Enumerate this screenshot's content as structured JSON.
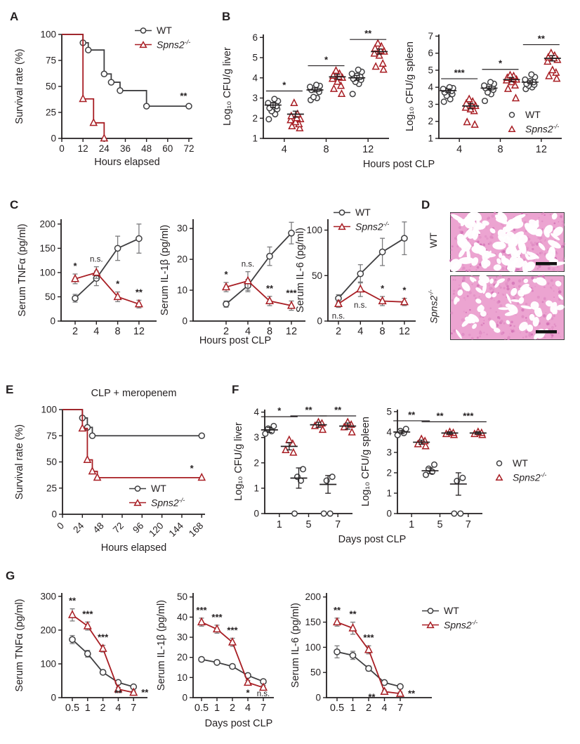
{
  "figure": {
    "panel_letters": {
      "A": "A",
      "B": "B",
      "C": "C",
      "D": "D",
      "E": "E",
      "F": "F",
      "G": "G"
    },
    "legend": {
      "wt": "WT",
      "ko_base": "Spns2",
      "ko_sup": "-/-"
    },
    "shared_labels": {
      "b_xlabel": "Hours post CLP",
      "c_xlabel": "Hours post CLP",
      "f_xlabel": "Days post CLP",
      "g_xlabel": "Days post CLP"
    },
    "histology": {
      "wt_label": "WT",
      "ko_label_base": "Spns2",
      "ko_label_sup": "-/-"
    },
    "colors": {
      "wt": "#3f3f41",
      "ko": "#a81e24",
      "axis": "#231f20",
      "err": "#7b7b7d",
      "mean": "#231f20",
      "hist_pink": "#eca4d1"
    }
  },
  "chart_data": [
    {
      "id": "A",
      "type": "survival",
      "ylabel": "Survival rate (%)",
      "xlabel": "Hours elapsed",
      "xlim": [
        0,
        74
      ],
      "xticks": [
        0,
        12,
        24,
        36,
        48,
        60,
        72
      ],
      "ylim": [
        0,
        100
      ],
      "yticks": [
        0,
        25,
        50,
        75,
        100
      ],
      "series": [
        {
          "name": "WT",
          "color": "wt",
          "marker": "circle",
          "steps": [
            [
              0,
              100
            ],
            [
              12,
              92
            ],
            [
              15,
              85
            ],
            [
              24,
              62
            ],
            [
              28,
              54
            ],
            [
              33,
              46
            ],
            [
              48,
              31
            ],
            [
              72,
              31
            ]
          ]
        },
        {
          "name": "Spns2-/-",
          "color": "ko",
          "marker": "triangle",
          "steps": [
            [
              0,
              100
            ],
            [
              12,
              38
            ],
            [
              18,
              15
            ],
            [
              24,
              0
            ]
          ]
        }
      ],
      "annotations": [
        {
          "text": "**",
          "x": 69,
          "y": 38
        }
      ]
    },
    {
      "id": "B1",
      "type": "scatter",
      "ylabel": "Log₁₀ CFU/g liver",
      "ylim": [
        1,
        6.15
      ],
      "yticks": [
        1,
        2,
        3,
        4,
        5,
        6
      ],
      "categories": [
        "4",
        "8",
        "12"
      ],
      "groups": [
        {
          "sig": "*",
          "sig_y": 3.35,
          "wt": [
            1.95,
            2.2,
            2.35,
            2.45,
            2.5,
            2.6,
            2.65,
            2.75,
            2.85,
            2.95
          ],
          "wt_mean": 2.65,
          "wt_err": 0.12,
          "ko": [
            1.5,
            1.6,
            1.7,
            1.8,
            1.9,
            1.95,
            2.0,
            2.1,
            2.2,
            2.75
          ],
          "ko_mean": 2.2,
          "ko_err": 0.15
        },
        {
          "sig": "*",
          "sig_y": 4.6,
          "wt": [
            2.9,
            3.0,
            3.05,
            3.3,
            3.4,
            3.45,
            3.5,
            3.55,
            3.6,
            3.65
          ],
          "wt_mean": 3.4,
          "wt_err": 0.1,
          "ko": [
            3.2,
            3.45,
            3.6,
            3.8,
            3.95,
            4.0,
            4.05,
            4.1,
            4.2,
            4.35
          ],
          "ko_mean": 4.05,
          "ko_err": 0.12
        },
        {
          "sig": "**",
          "sig_y": 5.9,
          "wt": [
            3.2,
            3.7,
            3.8,
            3.9,
            3.95,
            4.05,
            4.1,
            4.2,
            4.3,
            4.4
          ],
          "wt_mean": 4.0,
          "wt_err": 0.12,
          "ko": [
            4.4,
            4.55,
            4.7,
            5.1,
            5.2,
            5.3,
            5.35,
            5.45,
            5.55,
            5.7
          ],
          "ko_mean": 5.3,
          "ko_err": 0.13
        }
      ]
    },
    {
      "id": "B2",
      "type": "scatter",
      "ylabel": "Log₁₀ CFU/g spleen",
      "ylim": [
        1,
        7.1
      ],
      "yticks": [
        1,
        2,
        3,
        4,
        5,
        6,
        7
      ],
      "categories": [
        "4",
        "8",
        "12"
      ],
      "groups": [
        {
          "sig": "***",
          "sig_y": 4.5,
          "wt": [
            3.15,
            3.3,
            3.5,
            3.6,
            3.7,
            3.78,
            3.85,
            3.9,
            3.95,
            4.0
          ],
          "wt_mean": 3.8,
          "wt_err": 0.1,
          "ko": [
            1.8,
            1.95,
            2.6,
            2.7,
            2.8,
            2.9,
            2.95,
            3.05,
            3.15,
            3.3
          ],
          "ko_mean": 2.9,
          "ko_err": 0.16
        },
        {
          "sig": "*",
          "sig_y": 5.05,
          "wt": [
            3.2,
            3.6,
            3.7,
            3.85,
            3.95,
            4.0,
            4.05,
            4.1,
            4.2,
            4.3
          ],
          "wt_mean": 3.95,
          "wt_err": 0.11,
          "ko": [
            3.35,
            3.9,
            4.1,
            4.3,
            4.4,
            4.45,
            4.5,
            4.55,
            4.65,
            4.7
          ],
          "ko_mean": 4.45,
          "ko_err": 0.13
        },
        {
          "sig": "**",
          "sig_y": 6.5,
          "wt": [
            3.9,
            4.0,
            4.1,
            4.15,
            4.2,
            4.3,
            4.35,
            4.45,
            4.6,
            4.75
          ],
          "wt_mean": 4.3,
          "wt_err": 0.09,
          "ko": [
            4.5,
            4.65,
            4.85,
            5.0,
            5.5,
            5.6,
            5.7,
            5.75,
            5.85,
            6.0
          ],
          "ko_mean": 5.7,
          "ko_err": 0.16
        }
      ]
    },
    {
      "id": "C1",
      "type": "line",
      "ylabel": "Serum TNFα (pg/ml)",
      "ylim": [
        0,
        210
      ],
      "yticks": [
        0,
        50,
        100,
        150,
        200
      ],
      "categories": [
        "2",
        "4",
        "8",
        "12"
      ],
      "series": [
        {
          "name": "WT",
          "color": "wt",
          "marker": "circle",
          "values": [
            47,
            88,
            150,
            170
          ],
          "errors": [
            8,
            15,
            25,
            30
          ]
        },
        {
          "name": "Spns2-/-",
          "color": "ko",
          "marker": "triangle",
          "values": [
            87,
            100,
            50,
            35
          ],
          "errors": [
            10,
            12,
            10,
            8
          ]
        }
      ],
      "annotations": [
        {
          "ci": 0,
          "text": "*",
          "pos": "above"
        },
        {
          "ci": 1,
          "text": "n.s.",
          "pos": "above"
        },
        {
          "ci": 2,
          "text": "*",
          "pos": "above"
        },
        {
          "ci": 3,
          "text": "**",
          "pos": "above"
        }
      ]
    },
    {
      "id": "C2",
      "type": "line",
      "ylabel": "Serum IL-1β (pg/ml)",
      "ylim": [
        0,
        33
      ],
      "yticks": [
        0,
        10,
        20,
        30
      ],
      "categories": [
        "2",
        "4",
        "8",
        "12"
      ],
      "series": [
        {
          "name": "WT",
          "color": "wt",
          "marker": "circle",
          "values": [
            5.5,
            11.5,
            21,
            28.5
          ],
          "errors": [
            1,
            2,
            3,
            3.5
          ]
        },
        {
          "name": "Spns2-/-",
          "color": "ko",
          "marker": "triangle",
          "values": [
            11,
            13,
            6.5,
            5
          ],
          "errors": [
            1.5,
            3,
            1.5,
            1.5
          ]
        }
      ],
      "annotations": [
        {
          "ci": 0,
          "text": "*",
          "pos": "above"
        },
        {
          "ci": 1,
          "text": "n.s.",
          "pos": "above"
        },
        {
          "ci": 2,
          "text": "**",
          "pos": "above"
        },
        {
          "ci": 3,
          "text": "***",
          "pos": "above"
        }
      ]
    },
    {
      "id": "C3",
      "type": "line",
      "ylabel": "Serum IL-6 (pg/ml)",
      "ylim": [
        0,
        112
      ],
      "yticks": [
        0,
        50,
        100
      ],
      "categories": [
        "2",
        "4",
        "8",
        "12"
      ],
      "series": [
        {
          "name": "WT",
          "color": "wt",
          "marker": "circle",
          "values": [
            25,
            52,
            76,
            91
          ],
          "errors": [
            4,
            10,
            15,
            18
          ]
        },
        {
          "name": "Spns2-/-",
          "color": "ko",
          "marker": "triangle",
          "values": [
            19,
            35,
            22,
            21
          ],
          "errors": [
            4,
            8,
            5,
            4
          ]
        }
      ],
      "annotations": [
        {
          "ci": 0,
          "text": "n.s.",
          "pos": "below"
        },
        {
          "ci": 1,
          "text": "n.s.",
          "pos": "below"
        },
        {
          "ci": 2,
          "text": "*",
          "pos": "above"
        },
        {
          "ci": 3,
          "text": "*",
          "pos": "above"
        }
      ]
    },
    {
      "id": "E",
      "type": "survival",
      "title": "CLP + meropenem",
      "ylabel": "Survival rate (%)",
      "xlabel": "Hours elapsed",
      "xlim": [
        0,
        172
      ],
      "xticks": [
        0,
        24,
        48,
        72,
        96,
        120,
        144,
        168
      ],
      "rotate_xticks": true,
      "ylim": [
        0,
        100
      ],
      "yticks": [
        0,
        25,
        50,
        75,
        100
      ],
      "series": [
        {
          "name": "WT",
          "color": "wt",
          "marker": "circle",
          "steps": [
            [
              0,
              100
            ],
            [
              24,
              92
            ],
            [
              30,
              83
            ],
            [
              36,
              75
            ],
            [
              168,
              75
            ]
          ]
        },
        {
          "name": "Spns2-/-",
          "color": "ko",
          "marker": "triangle",
          "steps": [
            [
              0,
              100
            ],
            [
              24,
              82
            ],
            [
              30,
              52
            ],
            [
              36,
              41
            ],
            [
              42,
              35
            ],
            [
              168,
              35
            ]
          ]
        }
      ],
      "annotations": [
        {
          "text": "*",
          "x": 156,
          "y": 41
        }
      ]
    },
    {
      "id": "F1",
      "type": "scatter",
      "ylabel": "Log₁₀ CFU/g liver",
      "ylim": [
        0,
        4.1
      ],
      "yticks": [
        0,
        1,
        2,
        3,
        4
      ],
      "categories": [
        "1",
        "5",
        "7"
      ],
      "groups": [
        {
          "sig": "*",
          "sig_y": 3.82,
          "wt": [
            3.15,
            3.25,
            3.35,
            3.45
          ],
          "wt_mean": 3.3,
          "wt_err": 0.1,
          "ko": [
            2.4,
            2.5,
            2.75,
            2.9
          ],
          "ko_mean": 2.65,
          "ko_err": 0.14
        },
        {
          "sig": "**",
          "sig_y": 3.85,
          "wt": [
            0,
            1.3,
            1.45,
            1.75
          ],
          "wt_mean": 1.4,
          "wt_err": 0.4,
          "ko": [
            3.3,
            3.45,
            3.55,
            3.6
          ],
          "ko_mean": 3.5,
          "ko_err": 0.1
        },
        {
          "sig": "**",
          "sig_y": 3.85,
          "wt": [
            0,
            0,
            1.3,
            1.45
          ],
          "wt_mean": 1.15,
          "wt_err": 0.35,
          "ko": [
            3.2,
            3.4,
            3.5,
            3.6
          ],
          "ko_mean": 3.45,
          "ko_err": 0.12
        }
      ]
    },
    {
      "id": "F2",
      "type": "scatter",
      "ylabel": "Log₁₀ CFU/g spleen",
      "ylim": [
        0,
        5.1
      ],
      "yticks": [
        0,
        1,
        2,
        3,
        4,
        5
      ],
      "categories": [
        "1",
        "5",
        "7"
      ],
      "groups": [
        {
          "sig": "**",
          "sig_y": 4.55,
          "wt": [
            3.85,
            3.95,
            4.05,
            4.15
          ],
          "wt_mean": 4.0,
          "wt_err": 0.08,
          "ko": [
            3.3,
            3.4,
            3.55,
            3.65
          ],
          "ko_mean": 3.5,
          "ko_err": 0.1
        },
        {
          "sig": "**",
          "sig_y": 4.5,
          "wt": [
            1.9,
            2.05,
            2.2,
            2.4
          ],
          "wt_mean": 2.1,
          "wt_err": 0.14,
          "ko": [
            3.85,
            3.9,
            3.95,
            4.0
          ],
          "ko_mean": 3.95,
          "ko_err": 0.06
        },
        {
          "sig": "***",
          "sig_y": 4.5,
          "wt": [
            0,
            0,
            1.6,
            1.75
          ],
          "wt_mean": 1.45,
          "wt_err": 0.55,
          "ko": [
            3.85,
            3.9,
            3.95,
            4.0
          ],
          "ko_mean": 3.95,
          "ko_err": 0.06
        }
      ]
    },
    {
      "id": "G1",
      "type": "line",
      "ylabel": "Serum TNFα (pg/ml)",
      "ylim": [
        0,
        310
      ],
      "yticks": [
        0,
        100,
        200,
        300
      ],
      "categories": [
        "0.5",
        "1",
        "2",
        "4",
        "7"
      ],
      "series": [
        {
          "name": "WT",
          "color": "wt",
          "marker": "circle",
          "values": [
            172,
            130,
            75,
            45,
            32
          ],
          "errors": [
            12,
            10,
            6,
            5,
            5
          ]
        },
        {
          "name": "Spns2-/-",
          "color": "ko",
          "marker": "triangle",
          "values": [
            245,
            212,
            145,
            25,
            15
          ],
          "errors": [
            18,
            12,
            10,
            5,
            5
          ]
        }
      ],
      "annotations": [
        {
          "ci": 0,
          "text": "**",
          "pos": "above"
        },
        {
          "ci": 1,
          "text": "***",
          "pos": "above"
        },
        {
          "ci": 2,
          "text": "***",
          "pos": "above"
        },
        {
          "ci": 3,
          "text": "**",
          "pos": "below"
        },
        {
          "ci": 4,
          "text": "**",
          "pos": "right"
        }
      ]
    },
    {
      "id": "G2",
      "type": "line",
      "ylabel": "Serum IL-1β (pg/ml)",
      "ylim": [
        0,
        52
      ],
      "yticks": [
        0,
        10,
        20,
        30,
        40,
        50
      ],
      "categories": [
        "0.5",
        "1",
        "2",
        "4",
        "7"
      ],
      "series": [
        {
          "name": "WT",
          "color": "wt",
          "marker": "circle",
          "values": [
            19,
            17.5,
            15.5,
            11,
            8
          ],
          "errors": [
            1,
            1,
            1,
            1,
            1
          ]
        },
        {
          "name": "Spns2-/-",
          "color": "ko",
          "marker": "triangle",
          "values": [
            37.5,
            34,
            27.5,
            7.5,
            5
          ],
          "errors": [
            2,
            2,
            2,
            1,
            1
          ]
        }
      ],
      "annotations": [
        {
          "ci": 0,
          "text": "***",
          "pos": "above"
        },
        {
          "ci": 1,
          "text": "***",
          "pos": "above"
        },
        {
          "ci": 2,
          "text": "***",
          "pos": "above"
        },
        {
          "ci": 3,
          "text": "*",
          "pos": "below"
        },
        {
          "ci": 4,
          "text": "n.s.",
          "pos": "below"
        }
      ]
    },
    {
      "id": "G3",
      "type": "line",
      "ylabel": "Serum IL-6 (pg/ml)",
      "ylim": [
        0,
        208
      ],
      "yticks": [
        0,
        50,
        100,
        150,
        200
      ],
      "categories": [
        "0.5",
        "1",
        "2",
        "4",
        "7"
      ],
      "series": [
        {
          "name": "WT",
          "color": "wt",
          "marker": "circle",
          "values": [
            91,
            84,
            58,
            30,
            22
          ],
          "errors": [
            12,
            8,
            5,
            4,
            4
          ]
        },
        {
          "name": "Spns2-/-",
          "color": "ko",
          "marker": "triangle",
          "values": [
            150,
            138,
            95,
            12,
            8
          ],
          "errors": [
            8,
            12,
            8,
            3,
            3
          ]
        }
      ],
      "annotations": [
        {
          "ci": 0,
          "text": "**",
          "pos": "above"
        },
        {
          "ci": 1,
          "text": "**",
          "pos": "above"
        },
        {
          "ci": 2,
          "text": "***",
          "pos": "above"
        },
        {
          "ci": 3,
          "text": "**",
          "pos": "left"
        },
        {
          "ci": 4,
          "text": "**",
          "pos": "right"
        }
      ]
    },
    {
      "id": "D1",
      "type": "histology",
      "label": "WT",
      "airspace": "high"
    },
    {
      "id": "D2",
      "type": "histology",
      "label": "Spns2-/-",
      "airspace": "low"
    }
  ]
}
